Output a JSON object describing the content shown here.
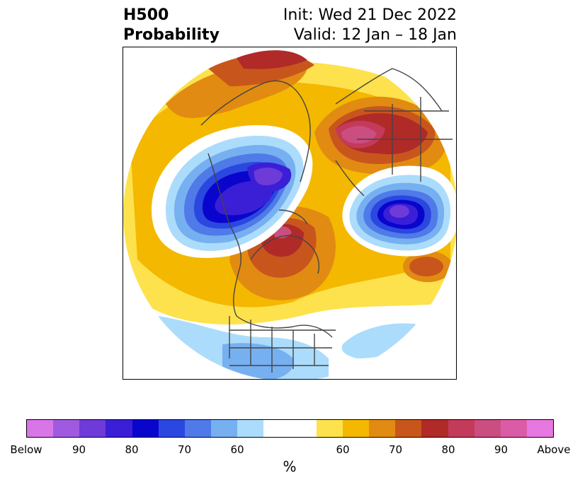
{
  "header": {
    "title_line1": "H500",
    "title_line2": "Probability",
    "init": "Init: Wed 21 Dec 2022",
    "valid": "Valid: 12 Jan – 18 Jan"
  },
  "colorbar": {
    "unit": "%",
    "colors": [
      "#d876e8",
      "#a05ae0",
      "#6e3ad8",
      "#3a1fd6",
      "#0a05cd",
      "#2a48e0",
      "#4f7ae8",
      "#77b0f0",
      "#acdcfb",
      "#ffffff",
      "#ffffff",
      "#fde24d",
      "#f4b800",
      "#e18b12",
      "#c8561c",
      "#b02a28",
      "#c43a5a",
      "#ca4e80",
      "#da5ca6",
      "#e778df"
    ],
    "ticks": [
      "Below",
      "90",
      "80",
      "70",
      "60",
      "60",
      "70",
      "80",
      "90",
      "Above"
    ]
  }
}
